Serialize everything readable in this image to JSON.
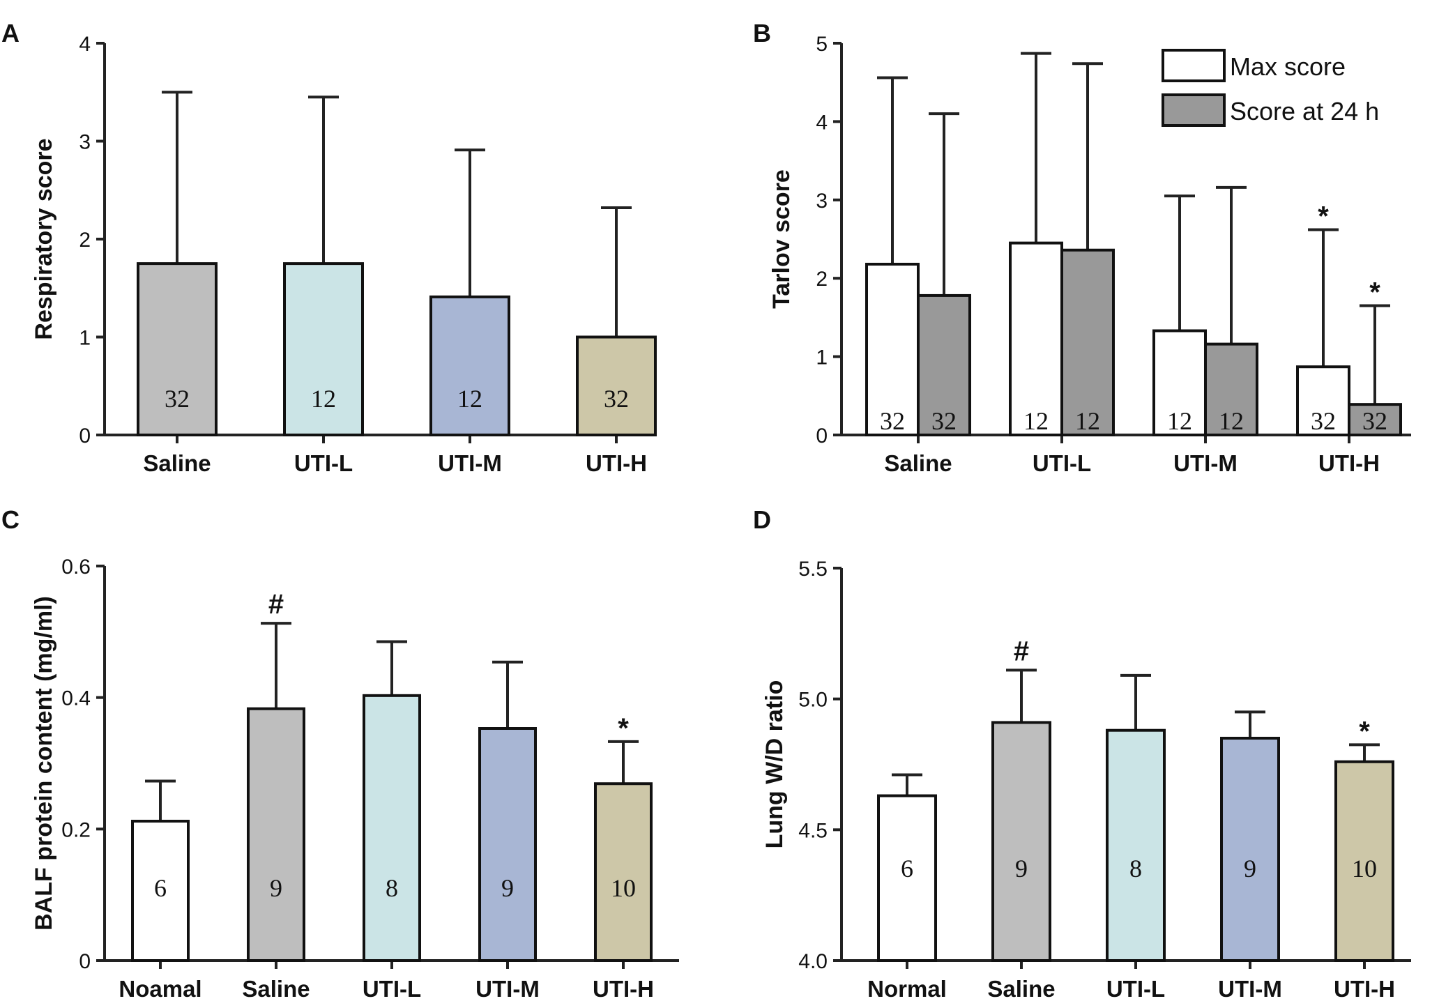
{
  "chart_data": [
    {
      "panel": "A",
      "type": "bar",
      "ylabel": "Respiratory score",
      "ylim": [
        0,
        4
      ],
      "yticks": [
        "0",
        "1",
        "2",
        "3",
        "4"
      ],
      "categories": [
        "Saline",
        "UTI-L",
        "UTI-M",
        "UTI-H"
      ],
      "values": [
        1.75,
        1.75,
        1.41,
        1.0
      ],
      "errors": [
        1.75,
        1.7,
        1.5,
        1.32
      ],
      "n": [
        "32",
        "12",
        "12",
        "32"
      ],
      "colors": [
        "#bebebe",
        "#cbe4e6",
        "#a8b6d4",
        "#cdc7a8"
      ],
      "annotations": [
        "",
        "",
        "",
        ""
      ]
    },
    {
      "panel": "B",
      "type": "bar",
      "ylabel": "Tarlov score",
      "ylim": [
        0,
        5
      ],
      "yticks": [
        "0",
        "1",
        "2",
        "3",
        "4",
        "5"
      ],
      "categories": [
        "Saline",
        "UTI-L",
        "UTI-M",
        "UTI-H"
      ],
      "series": [
        {
          "name": "Max score",
          "color": "#ffffff",
          "values": [
            2.18,
            2.45,
            1.33,
            0.87
          ],
          "errors": [
            2.38,
            2.42,
            1.72,
            1.75
          ],
          "n": [
            "32",
            "12",
            "12",
            "32"
          ],
          "annotations": [
            "",
            "",
            "",
            "*"
          ]
        },
        {
          "name": "Score at 24 h",
          "color": "#999999",
          "values": [
            1.78,
            2.36,
            1.16,
            0.39
          ],
          "errors": [
            2.32,
            2.38,
            2.0,
            1.26
          ],
          "n": [
            "32",
            "12",
            "12",
            "32"
          ],
          "annotations": [
            "",
            "",
            "",
            "*"
          ]
        }
      ],
      "legend": [
        "Max score",
        "Score at 24 h"
      ]
    },
    {
      "panel": "C",
      "type": "bar",
      "ylabel": "BALF protein content (mg/ml)",
      "ylim": [
        0,
        0.6
      ],
      "yticks": [
        "0",
        "0.2",
        "0.4",
        "0.6"
      ],
      "categories": [
        "Noamal",
        "Saline",
        "UTI-L",
        "UTI-M",
        "UTI-H"
      ],
      "values": [
        0.212,
        0.383,
        0.403,
        0.353,
        0.269
      ],
      "errors": [
        0.061,
        0.13,
        0.082,
        0.101,
        0.064
      ],
      "n": [
        "6",
        "9",
        "8",
        "9",
        "10"
      ],
      "colors": [
        "#ffffff",
        "#bebebe",
        "#cbe4e6",
        "#a8b6d4",
        "#cdc7a8"
      ],
      "annotations": [
        "",
        "#",
        "",
        "",
        "*"
      ]
    },
    {
      "panel": "D",
      "type": "bar",
      "ylabel": "Lung W/D ratio",
      "ylim": [
        4.0,
        5.5
      ],
      "yticks": [
        "4.0",
        "4.5",
        "5.0",
        "5.5"
      ],
      "categories": [
        "Normal",
        "Saline",
        "UTI-L",
        "UTI-M",
        "UTI-H"
      ],
      "values": [
        4.63,
        4.91,
        4.88,
        4.85,
        4.76
      ],
      "errors": [
        0.08,
        0.2,
        0.21,
        0.1,
        0.065
      ],
      "n": [
        "6",
        "9",
        "8",
        "9",
        "10"
      ],
      "colors": [
        "#ffffff",
        "#bebebe",
        "#cbe4e6",
        "#a8b6d4",
        "#cdc7a8"
      ],
      "annotations": [
        "",
        "#",
        "",
        "",
        "*"
      ]
    }
  ]
}
